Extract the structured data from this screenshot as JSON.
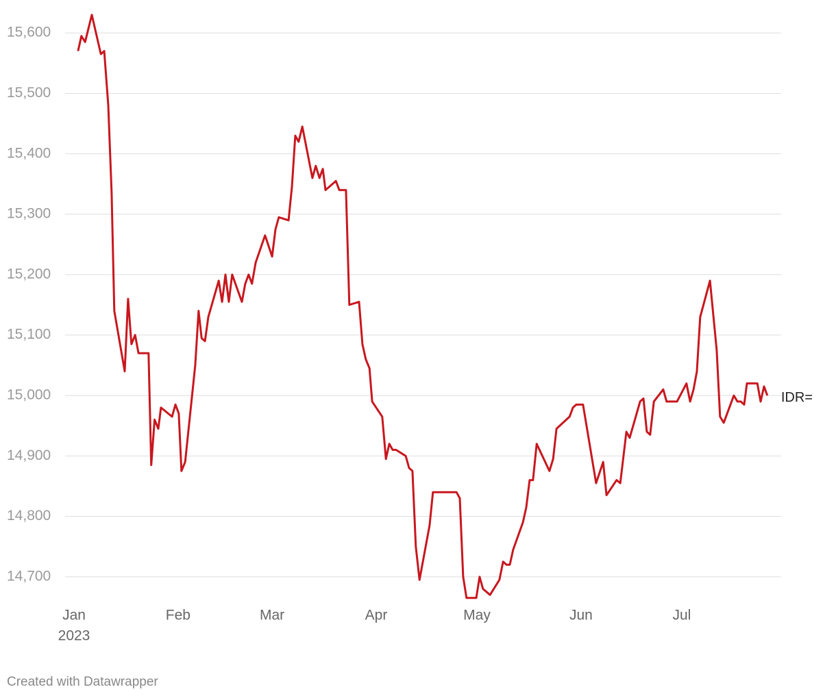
{
  "chart_data": {
    "type": "line",
    "x": [
      1.2,
      2.2,
      3.3,
      5.3,
      8,
      9,
      10.2,
      11.2,
      12,
      15.1,
      16.1,
      17.1,
      18.2,
      19.2,
      22.2,
      23,
      24,
      25.1,
      25.9,
      29.2,
      30.2,
      31.2,
      32,
      33.1,
      36.1,
      37.1,
      38,
      39,
      40,
      43.1,
      44.1,
      45.1,
      46.1,
      47.1,
      50,
      51,
      52,
      53,
      54.1,
      56.9,
      59,
      60,
      61,
      63.9,
      64.9,
      65.9,
      66.9,
      68,
      71,
      72,
      73.1,
      74.1,
      74.9,
      78,
      79,
      81,
      82,
      84.9,
      85.9,
      86.9,
      88,
      88.8,
      91.8,
      92.9,
      93.9,
      94.9,
      95.9,
      98.8,
      99.8,
      100.8,
      101.8,
      102.9,
      105.9,
      106.9,
      113.9,
      114.9,
      115.9,
      116.9,
      119.8,
      120.8,
      121.8,
      123.9,
      126.7,
      127.8,
      128.8,
      129.8,
      130.8,
      133.7,
      134.7,
      135.7,
      136.7,
      137.8,
      141.6,
      142.7,
      143.7,
      147.6,
      148.6,
      149.6,
      151.6,
      155.5,
      157.6,
      158.6,
      161.6,
      162.7,
      164.5,
      165.5,
      168.6,
      169.6,
      170.6,
      171.6,
      172.7,
      175.5,
      176.5,
      179.6,
      182.4,
      183.5,
      184.5,
      185.5,
      186.5,
      189.4,
      191.4,
      192.4,
      193.5,
      196.5,
      197.6,
      198.6,
      199.6,
      200.4,
      203.5,
      204.5,
      205.5,
      206.5
    ],
    "series": [
      {
        "name": "IDR=",
        "color": "#c8171e",
        "values": [
          15570,
          15595,
          15585,
          15630,
          15565,
          15570,
          15480,
          15335,
          15140,
          15040,
          15160,
          15085,
          15100,
          15070,
          15070,
          14885,
          14960,
          14945,
          14980,
          14965,
          14985,
          14970,
          14875,
          14890,
          15050,
          15140,
          15095,
          15090,
          15130,
          15190,
          15155,
          15200,
          15155,
          15200,
          15155,
          15185,
          15200,
          15185,
          15220,
          15265,
          15230,
          15275,
          15295,
          15290,
          15345,
          15430,
          15420,
          15445,
          15360,
          15380,
          15360,
          15375,
          15340,
          15355,
          15340,
          15340,
          15150,
          15155,
          15085,
          15060,
          15045,
          14990,
          14965,
          14895,
          14920,
          14910,
          14910,
          14900,
          14880,
          14875,
          14750,
          14695,
          14785,
          14840,
          14840,
          14830,
          14700,
          14665,
          14665,
          14700,
          14680,
          14670,
          14695,
          14725,
          14720,
          14720,
          14745,
          14790,
          14815,
          14860,
          14860,
          14920,
          14875,
          14895,
          14945,
          14965,
          14980,
          14985,
          14985,
          14855,
          14890,
          14835,
          14860,
          14855,
          14940,
          14930,
          14990,
          14995,
          14940,
          14935,
          14990,
          15010,
          14990,
          14990,
          15020,
          14990,
          15010,
          15040,
          15130,
          15190,
          15075,
          14965,
          14955,
          15000,
          14990,
          14990,
          14985,
          15020,
          15020,
          14990,
          15015,
          15000
        ]
      }
    ],
    "xlim": [
      -3,
      210
    ],
    "xticks": [
      {
        "value": 0,
        "label": "Jan"
      },
      {
        "value": 31,
        "label": "Feb"
      },
      {
        "value": 59,
        "label": "Mar"
      },
      {
        "value": 90,
        "label": "Apr"
      },
      {
        "value": 120,
        "label": "May"
      },
      {
        "value": 151,
        "label": "Jun"
      },
      {
        "value": 181,
        "label": "Jul"
      }
    ],
    "year_label": "2023",
    "ylim": [
      14650,
      15650
    ],
    "yticks": [
      {
        "value": 14700,
        "label": "14,700"
      },
      {
        "value": 14800,
        "label": "14,800"
      },
      {
        "value": 14900,
        "label": "14,900"
      },
      {
        "value": 15000,
        "label": "15,000"
      },
      {
        "value": 15100,
        "label": "15,100"
      },
      {
        "value": 15200,
        "label": "15,200"
      },
      {
        "value": 15300,
        "label": "15,300"
      },
      {
        "value": 15400,
        "label": "15,400"
      },
      {
        "value": 15500,
        "label": "15,500"
      },
      {
        "value": 15600,
        "label": "15,600"
      }
    ],
    "grid": true,
    "footer": "Created with Datawrapper"
  }
}
